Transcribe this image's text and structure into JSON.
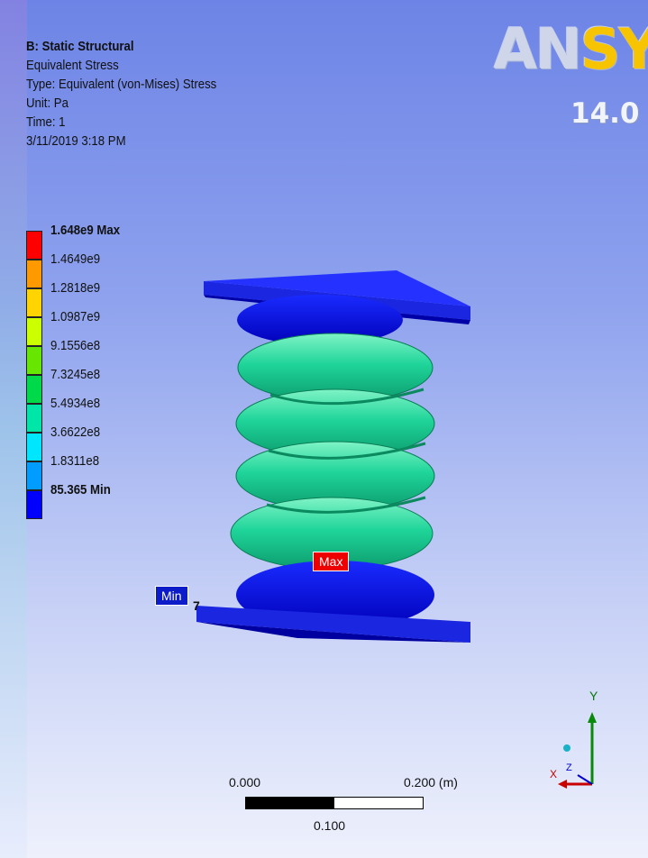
{
  "info": {
    "system": "B: Static Structural",
    "result": "Equivalent Stress",
    "type": "Type: Equivalent (von-Mises) Stress",
    "unit": "Unit: Pa",
    "time": "Time: 1",
    "datetime": "3/11/2019 3:18 PM"
  },
  "logo": {
    "an": "AN",
    "sys": "SYS",
    "version": "14.0"
  },
  "legend": {
    "entries": [
      {
        "label": "1.648e9 Max",
        "color": "#ff0000",
        "bold": true
      },
      {
        "label": "1.4649e9",
        "color": "#ff9900"
      },
      {
        "label": "1.2818e9",
        "color": "#ffd400"
      },
      {
        "label": "1.0987e9",
        "color": "#ccff00"
      },
      {
        "label": "9.1556e8",
        "color": "#66e600"
      },
      {
        "label": "7.3245e8",
        "color": "#00d94a"
      },
      {
        "label": "5.4934e8",
        "color": "#00e6a8"
      },
      {
        "label": "3.6622e8",
        "color": "#00e6ff"
      },
      {
        "label": "1.8311e8",
        "color": "#009cff"
      },
      {
        "label": "85.365 Min",
        "color": "#0000ff",
        "bold": true
      }
    ]
  },
  "probes": {
    "max": "Max",
    "min": "Min",
    "min_suffix": "7"
  },
  "scalebar": {
    "left": "0.000",
    "right": "0.200 (m)",
    "mid": "0.100"
  },
  "axis": {
    "y": "Y",
    "x": "X",
    "z": "Z"
  }
}
